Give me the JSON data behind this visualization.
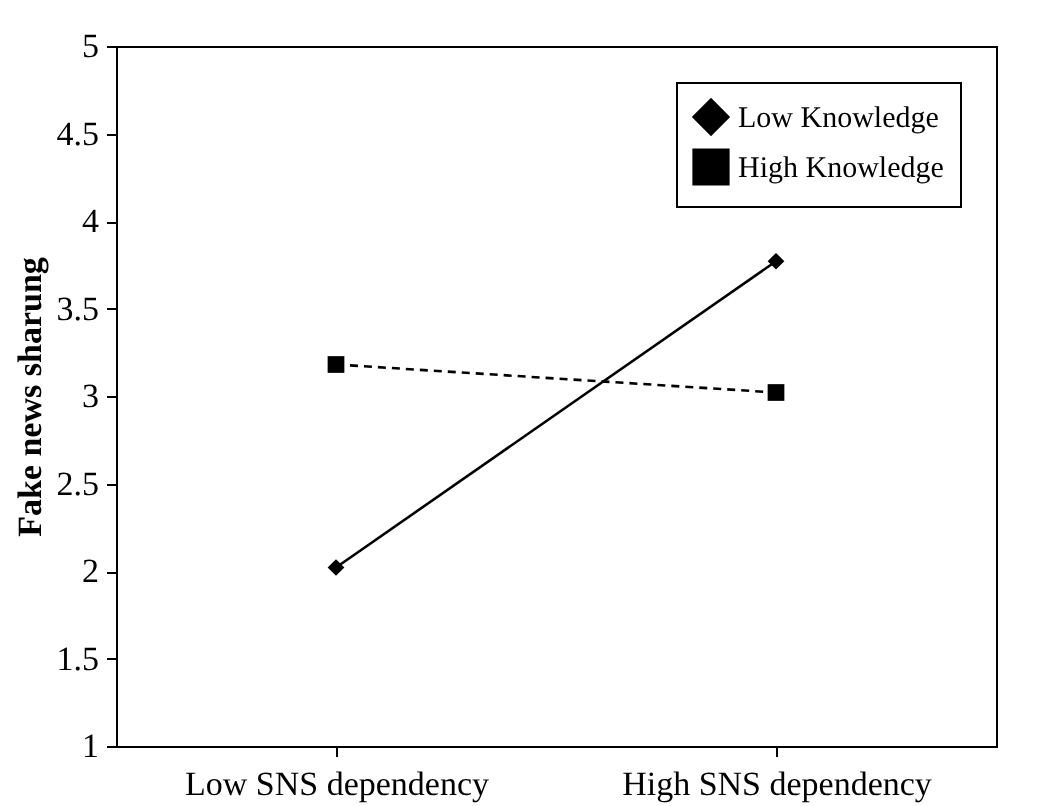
{
  "chart_data": {
    "type": "line",
    "ylabel": "Fake news sharung",
    "categories": [
      "Low SNS dependency",
      "High SNS dependency"
    ],
    "series": [
      {
        "name": "Low Knowledge",
        "color": "#000000",
        "values": [
          2.02,
          3.77
        ],
        "marker": "diamond",
        "line_style": "solid"
      },
      {
        "name": "High Knowledge",
        "color": "#000000",
        "values": [
          3.18,
          3.02
        ],
        "marker": "square",
        "line_style": "dashed"
      }
    ],
    "ylim": [
      1,
      5
    ],
    "yticks": [
      1,
      1.5,
      2,
      2.5,
      3,
      3.5,
      4,
      4.5,
      5
    ],
    "grid": false,
    "legend": "top right"
  }
}
